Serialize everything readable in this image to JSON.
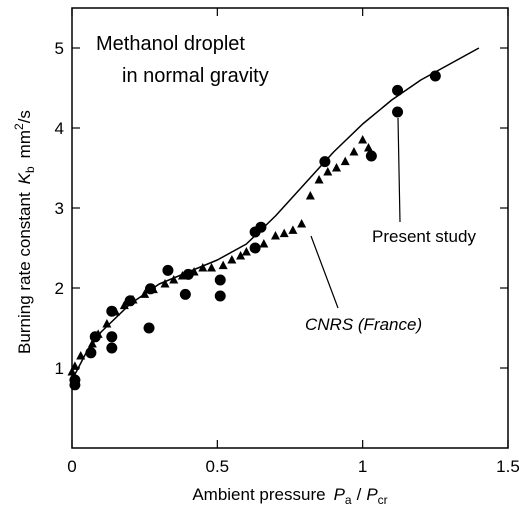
{
  "chart_data": {
    "type": "scatter",
    "title_lines": [
      "Methanol droplet",
      "in normal gravity"
    ],
    "xlabel": {
      "text": "Ambient pressure",
      "sym1": "P",
      "sub1": "a",
      "sep": "/",
      "sym2": "P",
      "sub2": "cr"
    },
    "ylabel": {
      "text": "Burning rate constant",
      "sym": "K",
      "sub": "b",
      "unit": "mm",
      "sup": "2",
      "unit2": "/s"
    },
    "xlim": [
      0,
      1.5
    ],
    "xticks": [
      0,
      0.5,
      1,
      1.5
    ],
    "ylim": [
      0,
      5.5
    ],
    "yticks": [
      1,
      2,
      3,
      4,
      5
    ],
    "series": [
      {
        "name": "Present study",
        "marker": "circle",
        "color": "#000000",
        "x": [
          0.01,
          0.01,
          0.065,
          0.08,
          0.137,
          0.137,
          0.137,
          0.2,
          0.27,
          0.265,
          0.33,
          0.39,
          0.4,
          0.51,
          0.51,
          0.63,
          0.63,
          0.65,
          0.87,
          1.03,
          1.12,
          1.12,
          1.25
        ],
        "values": [
          0.79,
          0.85,
          1.19,
          1.39,
          1.25,
          1.39,
          1.71,
          1.84,
          1.99,
          1.5,
          2.22,
          1.92,
          2.17,
          2.1,
          1.9,
          2.5,
          2.7,
          2.76,
          3.58,
          3.65,
          4.47,
          4.2,
          4.65
        ]
      },
      {
        "name": "CNRS (France)",
        "marker": "triangle",
        "color": "#000000",
        "x": [
          0,
          0.01,
          0.03,
          0.07,
          0.09,
          0.12,
          0.15,
          0.18,
          0.21,
          0.25,
          0.28,
          0.32,
          0.35,
          0.38,
          0.42,
          0.45,
          0.48,
          0.52,
          0.55,
          0.58,
          0.6,
          0.63,
          0.66,
          0.7,
          0.73,
          0.76,
          0.79,
          0.82,
          0.85,
          0.88,
          0.91,
          0.94,
          0.97,
          1.0,
          1.02
        ],
        "values": [
          0.95,
          1.02,
          1.15,
          1.3,
          1.42,
          1.55,
          1.7,
          1.78,
          1.85,
          1.92,
          1.98,
          2.05,
          2.1,
          2.15,
          2.2,
          2.25,
          2.25,
          2.28,
          2.35,
          2.4,
          2.45,
          2.5,
          2.55,
          2.65,
          2.68,
          2.72,
          2.8,
          3.15,
          3.35,
          3.45,
          3.5,
          3.58,
          3.7,
          3.85,
          3.75
        ]
      }
    ],
    "curve": {
      "x": [
        0,
        0.05,
        0.1,
        0.2,
        0.3,
        0.4,
        0.5,
        0.6,
        0.7,
        0.8,
        0.9,
        1.0,
        1.1,
        1.2,
        1.3,
        1.4
      ],
      "y": [
        0.85,
        1.2,
        1.45,
        1.8,
        2.05,
        2.2,
        2.35,
        2.55,
        2.9,
        3.3,
        3.7,
        4.05,
        4.35,
        4.6,
        4.8,
        5.0
      ]
    }
  }
}
